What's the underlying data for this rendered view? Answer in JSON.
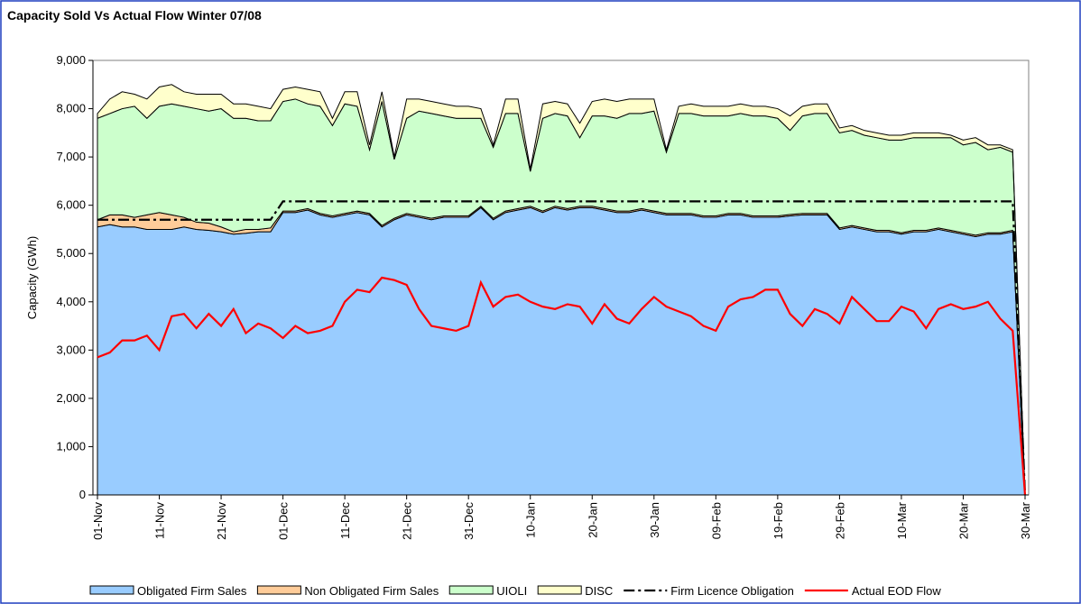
{
  "chart_data": {
    "type": "stacked-area",
    "title": "Capacity Sold Vs Actual Flow Winter 07/08",
    "y_label": "Capacity (GWh)",
    "categories": [
      "01-Nov",
      null,
      null,
      null,
      null,
      "11-Nov",
      null,
      null,
      null,
      null,
      "21-Nov",
      null,
      null,
      null,
      null,
      "01-Dec",
      null,
      null,
      null,
      null,
      "11-Dec",
      null,
      null,
      null,
      null,
      "21-Dec",
      null,
      null,
      null,
      null,
      "31-Dec",
      null,
      null,
      null,
      null,
      "10-Jan",
      null,
      null,
      null,
      null,
      "20-Jan",
      null,
      null,
      null,
      null,
      "30-Jan",
      null,
      null,
      null,
      null,
      "09-Feb",
      null,
      null,
      null,
      null,
      "19-Feb",
      null,
      null,
      null,
      null,
      "29-Feb",
      null,
      null,
      null,
      null,
      "10-Mar",
      null,
      null,
      null,
      null,
      "20-Mar",
      null,
      null,
      null,
      null,
      "30-Mar"
    ],
    "ylim": [
      0,
      9000
    ],
    "yticks": [
      0,
      {
        "value": 1000,
        "label": "1,000"
      },
      {
        "value": 2000,
        "label": "2,000"
      },
      {
        "value": 3000,
        "label": "3,000"
      },
      {
        "value": 4000,
        "label": "4,000"
      },
      {
        "value": 5000,
        "label": "5,000"
      },
      {
        "value": 6000,
        "label": "6,000"
      },
      {
        "value": 7000,
        "label": "7,000"
      },
      {
        "value": 8000,
        "label": "8,000"
      },
      {
        "value": 9000,
        "label": "9,000"
      }
    ],
    "series": [
      {
        "name": "Obligated Firm Sales",
        "kind": "area",
        "color": "#99ccff",
        "values": [
          5550,
          5600,
          5550,
          5550,
          5500,
          5500,
          5500,
          5550,
          5500,
          5480,
          5450,
          5400,
          5420,
          5450,
          5450,
          5850,
          5850,
          5900,
          5800,
          5750,
          5800,
          5850,
          5800,
          5550,
          5700,
          5800,
          5750,
          5700,
          5750,
          5750,
          5750,
          5950,
          5700,
          5850,
          5900,
          5950,
          5850,
          5950,
          5900,
          5950,
          5950,
          5900,
          5850,
          5850,
          5900,
          5850,
          5800,
          5800,
          5800,
          5750,
          5750,
          5800,
          5800,
          5750,
          5750,
          5750,
          5780,
          5800,
          5800,
          5800,
          5500,
          5550,
          5500,
          5450,
          5450,
          5400,
          5450,
          5450,
          5500,
          5450,
          5400,
          5350,
          5400,
          5400,
          5450,
          0
        ]
      },
      {
        "name": "Non Obligated Firm Sales",
        "kind": "area",
        "color": "#ffcc99",
        "values": [
          150,
          200,
          250,
          200,
          300,
          350,
          300,
          200,
          150,
          150,
          100,
          50,
          80,
          50,
          80,
          30,
          30,
          30,
          30,
          30,
          30,
          30,
          30,
          30,
          30,
          30,
          30,
          30,
          30,
          30,
          30,
          30,
          30,
          30,
          30,
          30,
          30,
          30,
          30,
          30,
          30,
          30,
          30,
          30,
          30,
          30,
          30,
          30,
          30,
          30,
          30,
          30,
          30,
          30,
          30,
          30,
          30,
          30,
          30,
          30,
          30,
          30,
          30,
          30,
          30,
          30,
          30,
          30,
          30,
          30,
          30,
          30,
          30,
          30,
          30,
          0
        ]
      },
      {
        "name": "UIOLI",
        "kind": "area",
        "color": "#ccffcc",
        "values": [
          2100,
          2100,
          2200,
          2300,
          2000,
          2200,
          2300,
          2300,
          2350,
          2320,
          2450,
          2350,
          2300,
          2250,
          2220,
          2270,
          2320,
          2170,
          2220,
          1870,
          2270,
          2170,
          1320,
          2570,
          1220,
          1970,
          2170,
          2170,
          2070,
          2020,
          2020,
          1820,
          1470,
          2020,
          1970,
          720,
          1920,
          1920,
          1920,
          1420,
          1870,
          1920,
          1920,
          2020,
          1970,
          2070,
          1270,
          2070,
          2070,
          2070,
          2070,
          2020,
          2070,
          2070,
          2070,
          2020,
          1740,
          2020,
          2070,
          2070,
          1970,
          1970,
          1920,
          1920,
          1870,
          1920,
          1920,
          1920,
          1870,
          1920,
          1820,
          1920,
          1720,
          1770,
          1620,
          0
        ]
      },
      {
        "name": "DISC",
        "kind": "area",
        "color": "#ffffcc",
        "values": [
          100,
          300,
          350,
          250,
          400,
          400,
          400,
          300,
          300,
          350,
          300,
          300,
          300,
          300,
          250,
          250,
          250,
          300,
          300,
          150,
          250,
          300,
          100,
          200,
          50,
          400,
          250,
          250,
          250,
          250,
          250,
          200,
          50,
          300,
          300,
          50,
          300,
          250,
          250,
          300,
          300,
          350,
          350,
          300,
          300,
          250,
          50,
          150,
          200,
          200,
          200,
          200,
          200,
          200,
          200,
          200,
          300,
          200,
          200,
          200,
          100,
          100,
          100,
          100,
          100,
          100,
          100,
          100,
          100,
          50,
          100,
          100,
          100,
          50,
          50,
          0
        ]
      },
      {
        "name": "Firm Licence Obligation",
        "kind": "line",
        "dash": "dash-dot",
        "color": "#000000",
        "values": [
          5700,
          5700,
          5700,
          5700,
          5700,
          5700,
          5700,
          5700,
          5700,
          5700,
          5700,
          5700,
          5700,
          5700,
          5700,
          6080,
          6080,
          6080,
          6080,
          6080,
          6080,
          6080,
          6080,
          6080,
          6080,
          6080,
          6080,
          6080,
          6080,
          6080,
          6080,
          6080,
          6080,
          6080,
          6080,
          6080,
          6080,
          6080,
          6080,
          6080,
          6080,
          6080,
          6080,
          6080,
          6080,
          6080,
          6080,
          6080,
          6080,
          6080,
          6080,
          6080,
          6080,
          6080,
          6080,
          6080,
          6080,
          6080,
          6080,
          6080,
          6080,
          6080,
          6080,
          6080,
          6080,
          6080,
          6080,
          6080,
          6080,
          6080,
          6080,
          6080,
          6080,
          6080,
          6080,
          0
        ]
      },
      {
        "name": "Actual EOD Flow",
        "kind": "line",
        "color": "#ff0000",
        "values": [
          2850,
          2950,
          3200,
          3200,
          3300,
          3000,
          3700,
          3750,
          3450,
          3750,
          3500,
          3850,
          3350,
          3550,
          3450,
          3250,
          3500,
          3350,
          3400,
          3500,
          4000,
          4250,
          4200,
          4500,
          4450,
          4350,
          3850,
          3500,
          3450,
          3400,
          3500,
          4400,
          3900,
          4100,
          4150,
          4000,
          3900,
          3850,
          3950,
          3900,
          3550,
          3950,
          3650,
          3550,
          3850,
          4100,
          3900,
          3800,
          3700,
          3500,
          3400,
          3900,
          4050,
          4100,
          4250,
          4250,
          3750,
          3500,
          3850,
          3750,
          3550,
          4100,
          3850,
          3600,
          3600,
          3900,
          3800,
          3450,
          3850,
          3950,
          3850,
          3900,
          4000,
          3650,
          3400,
          0
        ]
      }
    ]
  }
}
